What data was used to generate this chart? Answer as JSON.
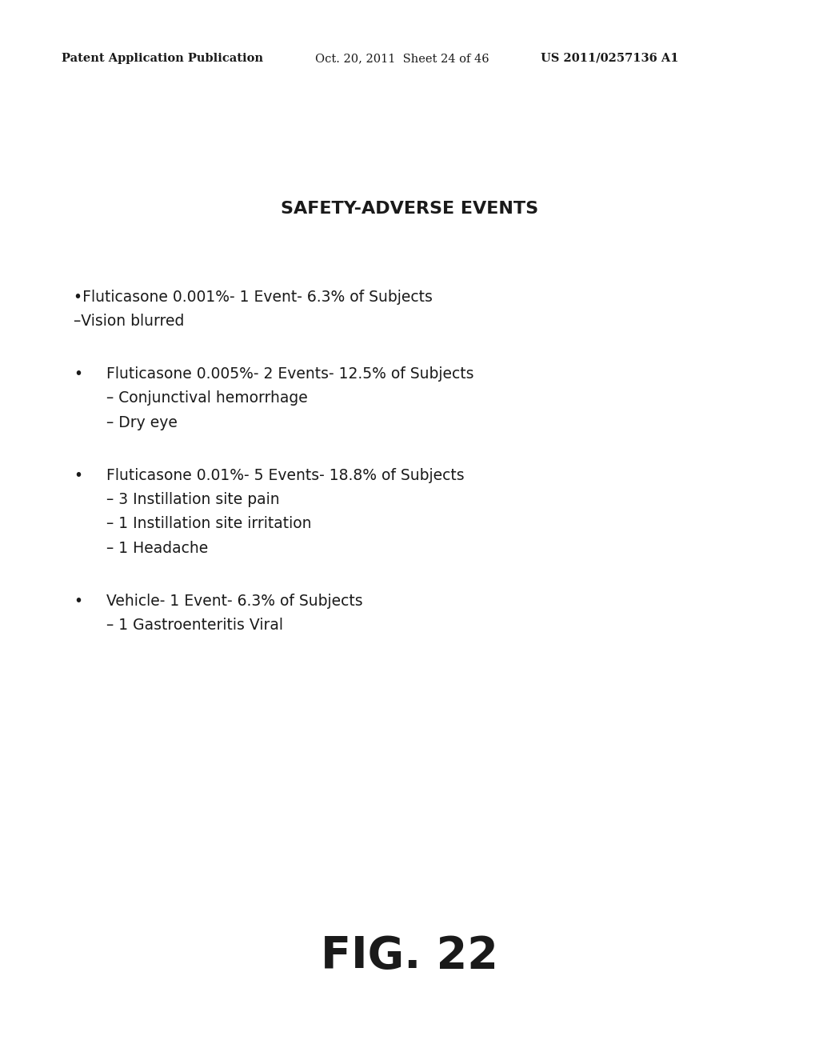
{
  "background_color": "#ffffff",
  "header_left": "Patent Application Publication",
  "header_middle": "Oct. 20, 2011  Sheet 24 of 46",
  "header_right": "US 2011/0257136 A1",
  "header_fontsize": 10.5,
  "title": "SAFETY-ADVERSE EVENTS",
  "title_fontsize": 16,
  "body_fontsize": 13.5,
  "fig_label": "FIG. 22",
  "fig_fontsize": 40
}
